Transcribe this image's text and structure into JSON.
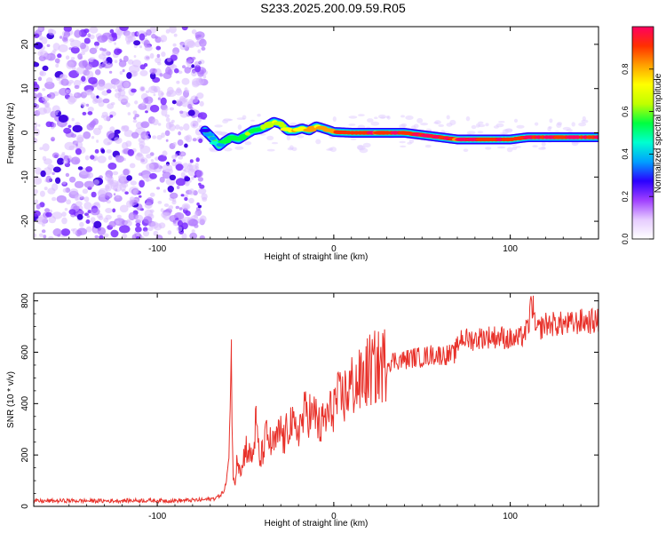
{
  "title": "S233.2025.200.09.59.R05",
  "chart_data": [
    {
      "type": "heatmap",
      "xlabel": "Height of straight line (km)",
      "ylabel": "Frequency (Hz)",
      "xlim": [
        -170,
        150
      ],
      "ylim": [
        -24,
        24
      ],
      "xticks": [
        -100,
        0,
        100
      ],
      "yticks": [
        -20,
        -10,
        0,
        10,
        20
      ],
      "grid": false,
      "colorbar": {
        "label": "Normalized spectral amplitude",
        "range": [
          0,
          1
        ],
        "ticks": [
          "0.0",
          "0.2",
          "0.4",
          "0.6",
          "0.8"
        ],
        "colors": [
          "#ffffff",
          "#e6ccff",
          "#a040ff",
          "#2a00ff",
          "#00a0ff",
          "#00ffd0",
          "#00ff40",
          "#c0ff00",
          "#ffff00",
          "#ffa000",
          "#ff3000",
          "#ff0060"
        ]
      },
      "noise_region": {
        "x": [
          -170,
          -73
        ],
        "freq_range": [
          -24,
          24
        ],
        "amplitude": [
          0.0,
          0.3
        ]
      },
      "ridge": {
        "x": [
          -73,
          -68,
          -65,
          -62,
          -58,
          -54,
          -50,
          -46,
          -42,
          -38,
          -34,
          -30,
          -26,
          -22,
          -18,
          -14,
          -10,
          -6,
          -2,
          0,
          10,
          20,
          30,
          40,
          50,
          60,
          70,
          80,
          90,
          100,
          110,
          120,
          130,
          140,
          150
        ],
        "y": [
          0.5,
          -1.5,
          -3.0,
          -2.0,
          -1.0,
          -1.5,
          -0.5,
          0.5,
          0.8,
          1.5,
          2.5,
          2.0,
          0.5,
          0.5,
          1.0,
          0.5,
          1.5,
          1.0,
          0.5,
          0.2,
          0.0,
          0.0,
          0.0,
          0.0,
          -0.5,
          -1.0,
          -1.5,
          -1.5,
          -1.5,
          -1.5,
          -1.0,
          -1.0,
          -1.0,
          -1.0,
          -1.0
        ],
        "amplitude": [
          0.3,
          0.4,
          0.45,
          0.45,
          0.5,
          0.55,
          0.55,
          0.6,
          0.6,
          0.65,
          0.7,
          0.7,
          0.7,
          0.72,
          0.75,
          0.75,
          0.78,
          0.8,
          0.82,
          0.85,
          0.9,
          0.92,
          0.93,
          0.93,
          0.92,
          0.92,
          0.93,
          0.94,
          0.94,
          0.95,
          0.95,
          0.95,
          0.95,
          0.95,
          0.95
        ]
      }
    },
    {
      "type": "line",
      "xlabel": "Height of straight line (km)",
      "ylabel": "SNR (10 * v/v)",
      "xlim": [
        -170,
        150
      ],
      "ylim": [
        0,
        830
      ],
      "xticks": [
        -100,
        0,
        100
      ],
      "yticks": [
        0,
        200,
        400,
        600,
        800
      ],
      "grid": false,
      "series": [
        {
          "color": "#e8312a",
          "x": [
            -170,
            -150,
            -130,
            -110,
            -90,
            -75,
            -68,
            -65,
            -62,
            -60,
            -58,
            -57,
            -56,
            -55,
            -52,
            -50,
            -48,
            -46,
            -44,
            -42,
            -40,
            -38,
            -35,
            -32,
            -30,
            -28,
            -25,
            -22,
            -20,
            -18,
            -15,
            -12,
            -10,
            -8,
            -5,
            -2,
            0,
            5,
            10,
            15,
            20,
            25,
            30,
            35,
            40,
            45,
            50,
            55,
            60,
            65,
            68,
            70,
            72,
            75,
            80,
            85,
            90,
            95,
            100,
            105,
            110,
            111,
            112,
            113,
            114,
            115,
            118,
            120,
            125,
            130,
            135,
            140,
            145,
            150
          ],
          "y": [
            20,
            22,
            21,
            23,
            22,
            25,
            30,
            40,
            60,
            120,
            580,
            100,
            80,
            200,
            140,
            240,
            200,
            190,
            330,
            170,
            220,
            280,
            230,
            260,
            300,
            250,
            340,
            280,
            310,
            330,
            380,
            340,
            360,
            300,
            340,
            360,
            400,
            420,
            470,
            480,
            530,
            540,
            560,
            570,
            570,
            580,
            580,
            590,
            590,
            590,
            590,
            620,
            660,
            650,
            650,
            660,
            660,
            660,
            650,
            650,
            690,
            730,
            820,
            730,
            700,
            680,
            700,
            710,
            710,
            710,
            710,
            720,
            720,
            720
          ]
        }
      ]
    }
  ]
}
